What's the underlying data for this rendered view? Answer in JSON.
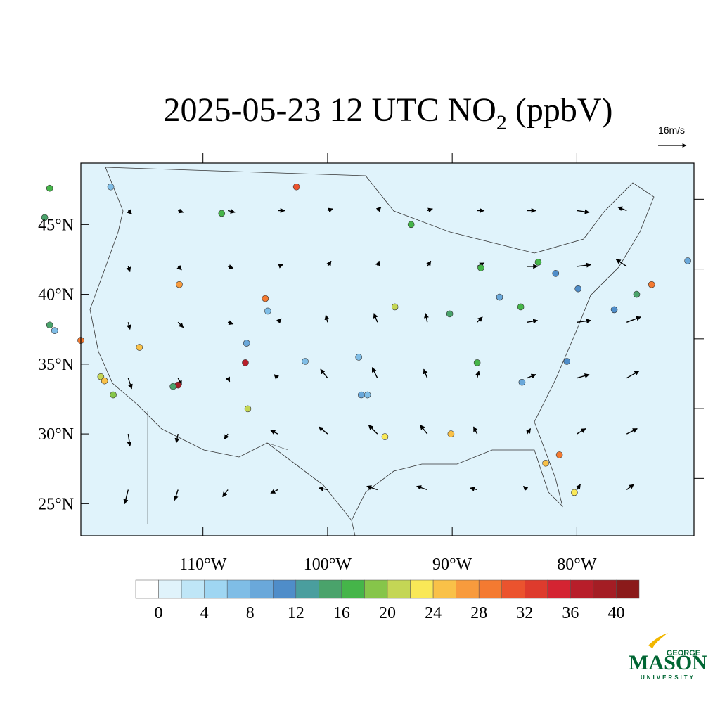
{
  "chart_data": {
    "type": "map",
    "title_prefix": "2025-05-23 12 UTC NO",
    "title_subscript": "2",
    "title_suffix": " (ppbV)",
    "xlim": [
      -119.8,
      -70.6
    ],
    "ylim": [
      22.7,
      49.4
    ],
    "xticks": [
      {
        "value": -110,
        "label": "110°W"
      },
      {
        "value": -100,
        "label": "100°W"
      },
      {
        "value": -90,
        "label": "90°W"
      },
      {
        "value": -80,
        "label": "80°W"
      }
    ],
    "yticks": [
      {
        "value": 25,
        "label": "25°N"
      },
      {
        "value": 30,
        "label": "30°N"
      },
      {
        "value": 35,
        "label": "35°N"
      },
      {
        "value": 40,
        "label": "40°N"
      },
      {
        "value": 45,
        "label": "45°N"
      }
    ],
    "colorbar": {
      "levels": [
        0,
        2,
        4,
        6,
        8,
        10,
        12,
        14,
        16,
        18,
        20,
        22,
        24,
        26,
        28,
        30,
        32,
        34,
        36,
        38,
        40
      ],
      "colors": [
        "#ffffff",
        "#e0f3fb",
        "#bfe6f7",
        "#9fd6f2",
        "#7fbde6",
        "#6aa8da",
        "#4f8dc9",
        "#4a9e9e",
        "#4aa36b",
        "#45b549",
        "#86c54a",
        "#c4d655",
        "#f9e857",
        "#f9c148",
        "#f89b3d",
        "#f47a31",
        "#eb532e",
        "#de3b2d",
        "#d42432",
        "#b81e2a",
        "#a41d24",
        "#8b1a1a"
      ],
      "ticks": [
        0,
        4,
        8,
        12,
        16,
        20,
        24,
        28,
        32,
        36,
        40
      ]
    },
    "stations": [
      [
        -118.2,
        34.1,
        20
      ],
      [
        -117.9,
        33.8,
        24
      ],
      [
        -117.2,
        32.8,
        18
      ],
      [
        -121.9,
        37.4,
        6
      ],
      [
        -122.3,
        37.8,
        14
      ],
      [
        -119.8,
        36.7,
        28
      ],
      [
        -115.1,
        36.2,
        24
      ],
      [
        -112.0,
        33.5,
        38
      ],
      [
        -112.4,
        33.4,
        14
      ],
      [
        -106.6,
        35.1,
        36
      ],
      [
        -106.4,
        31.8,
        20
      ],
      [
        -111.9,
        40.7,
        26
      ],
      [
        -105.0,
        39.7,
        28
      ],
      [
        -104.8,
        38.8,
        6
      ],
      [
        -122.3,
        47.6,
        16
      ],
      [
        -122.7,
        45.5,
        14
      ],
      [
        -117.4,
        47.7,
        6
      ],
      [
        -108.5,
        45.8,
        16
      ],
      [
        -102.5,
        47.7,
        30
      ],
      [
        -97.3,
        32.8,
        8
      ],
      [
        -95.4,
        29.8,
        22
      ],
      [
        -96.8,
        32.8,
        6
      ],
      [
        -90.2,
        38.6,
        14
      ],
      [
        -87.7,
        41.9,
        16
      ],
      [
        -83.1,
        42.3,
        16
      ],
      [
        -84.5,
        39.1,
        16
      ],
      [
        -86.2,
        39.8,
        8
      ],
      [
        -84.4,
        33.7,
        8
      ],
      [
        -80.2,
        25.8,
        22
      ],
      [
        -81.4,
        28.5,
        28
      ],
      [
        -82.5,
        27.9,
        24
      ],
      [
        -90.1,
        30.0,
        24
      ],
      [
        -74.0,
        40.7,
        28
      ],
      [
        -75.2,
        40.0,
        14
      ],
      [
        -77.0,
        38.9,
        10
      ],
      [
        -71.1,
        42.4,
        8
      ],
      [
        -79.9,
        40.4,
        10
      ],
      [
        -93.3,
        45.0,
        16
      ],
      [
        -94.6,
        39.1,
        20
      ],
      [
        -81.7,
        41.5,
        10
      ],
      [
        -88.0,
        35.1,
        16
      ],
      [
        -80.8,
        35.2,
        10
      ],
      [
        -106.5,
        36.5,
        8
      ],
      [
        -97.5,
        35.5,
        6
      ],
      [
        -101.8,
        35.2,
        6
      ]
    ],
    "wind": {
      "reference": 16,
      "reference_label": "16m/s",
      "lons": [
        -116,
        -112,
        -108,
        -104,
        -100,
        -96,
        -92,
        -88,
        -84,
        -80,
        -76
      ],
      "lats": [
        26,
        30,
        34,
        38,
        42,
        46
      ],
      "u": [
        [
          -2,
          -2,
          -3,
          -4,
          -5,
          -6,
          -6,
          -4,
          -2,
          2,
          4
        ],
        [
          1,
          -1,
          -2,
          -4,
          -5,
          -5,
          -4,
          -2,
          2,
          5,
          6
        ],
        [
          2,
          2,
          1,
          -2,
          -4,
          -3,
          -2,
          1,
          5,
          7,
          7
        ],
        [
          1,
          3,
          3,
          2,
          -1,
          -2,
          -1,
          3,
          6,
          8,
          8
        ],
        [
          1,
          2,
          3,
          3,
          2,
          1,
          2,
          4,
          6,
          8,
          -6
        ],
        [
          2,
          3,
          4,
          4,
          3,
          2,
          3,
          4,
          5,
          7,
          -5
        ]
      ],
      "v": [
        [
          -8,
          -6,
          -4,
          -2,
          1,
          2,
          2,
          1,
          2,
          3,
          3
        ],
        [
          -7,
          -5,
          -3,
          2,
          4,
          5,
          5,
          4,
          3,
          3,
          3
        ],
        [
          -6,
          -4,
          -2,
          2,
          5,
          6,
          5,
          4,
          2,
          2,
          4
        ],
        [
          -4,
          -3,
          -1,
          2,
          4,
          5,
          5,
          3,
          1,
          1,
          3
        ],
        [
          -3,
          -2,
          -1,
          1,
          3,
          3,
          3,
          2,
          0,
          1,
          4
        ],
        [
          -2,
          -1,
          -1,
          0,
          1,
          2,
          1,
          0,
          0,
          -1,
          2
        ]
      ]
    },
    "logo": {
      "top": "GEORGE",
      "main": "MASON",
      "bottom": "UNIVERSITY"
    }
  }
}
